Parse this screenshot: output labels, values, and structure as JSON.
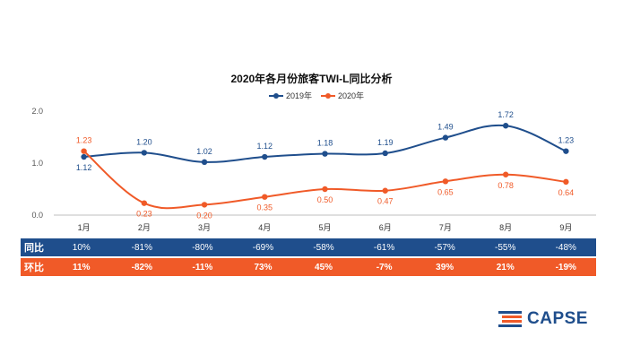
{
  "chart_data": {
    "type": "line",
    "title": "2020年各月份旅客TWI-L同比分析",
    "categories": [
      "1月",
      "2月",
      "3月",
      "4月",
      "5月",
      "6月",
      "7月",
      "8月",
      "9月"
    ],
    "ylim": [
      0,
      2
    ],
    "yticks": [
      "0.0",
      "1.0",
      "2.0"
    ],
    "ytick_values": [
      0,
      1,
      2
    ],
    "series": [
      {
        "name": "2019年",
        "color": "#1f4e8c",
        "values": [
          1.12,
          1.2,
          1.02,
          1.12,
          1.18,
          1.19,
          1.49,
          1.72,
          1.23
        ],
        "labels": [
          "1.12",
          "1.20",
          "1.02",
          "1.12",
          "1.18",
          "1.19",
          "1.49",
          "1.72",
          "1.23"
        ]
      },
      {
        "name": "2020年",
        "color": "#f05a28",
        "values": [
          1.23,
          0.23,
          0.2,
          0.35,
          0.5,
          0.47,
          0.65,
          0.78,
          0.64
        ],
        "labels": [
          "1.23",
          "0.23",
          "0.20",
          "0.35",
          "0.50",
          "0.47",
          "0.65",
          "0.78",
          "0.64"
        ]
      }
    ],
    "legend": "top-center",
    "grid": false
  },
  "table": {
    "yoy": {
      "label": "同比",
      "color": "#1f4e8c",
      "values": [
        "10%",
        "-81%",
        "-80%",
        "-69%",
        "-58%",
        "-61%",
        "-57%",
        "-55%",
        "-48%"
      ]
    },
    "mom": {
      "label": "环比",
      "color": "#f05a28",
      "values": [
        "11%",
        "-82%",
        "-11%",
        "73%",
        "45%",
        "-7%",
        "39%",
        "21%",
        "-19%"
      ]
    }
  },
  "logo": {
    "text": "CAPSE",
    "icon": "capse-logo-icon"
  }
}
